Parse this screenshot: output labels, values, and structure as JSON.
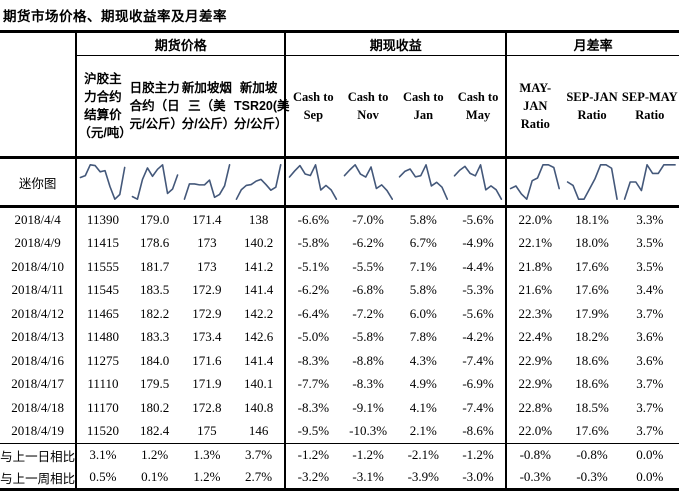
{
  "title": "期货市场价格、期现收益率及月差率",
  "colors": {
    "background": "#ffffff",
    "text": "#000000",
    "border": "#000000",
    "sparkline": "#44587a"
  },
  "table": {
    "corner_label": "",
    "groups": [
      {
        "label": "期货价格",
        "span": 4
      },
      {
        "label": "期现收益",
        "span": 4
      },
      {
        "label": "月差率",
        "span": 3
      }
    ],
    "columns": [
      "沪胶主力合约结算价（元/吨）",
      "日胶主力合约（日元/公斤）",
      "新加坡烟三（美分/公斤）",
      "新加坡TSR20(美分/公斤）",
      "Cash to Sep",
      "Cash to Nov",
      "Cash to Jan",
      "Cash to May",
      "MAY-JAN Ratio",
      "SEP-JAN Ratio",
      "SEP-MAY Ratio"
    ],
    "sparkline_row_label": "迷你图",
    "rows": [
      {
        "date": "2018/4/4",
        "values": [
          "11390",
          "179.0",
          "171.4",
          "138",
          "-6.6%",
          "-7.0%",
          "5.8%",
          "-5.6%",
          "22.0%",
          "18.1%",
          "3.3%"
        ]
      },
      {
        "date": "2018/4/9",
        "values": [
          "11415",
          "178.6",
          "173",
          "140.2",
          "-5.8%",
          "-6.2%",
          "6.7%",
          "-4.9%",
          "22.1%",
          "18.0%",
          "3.5%"
        ]
      },
      {
        "date": "2018/4/10",
        "values": [
          "11555",
          "181.7",
          "173",
          "141.2",
          "-5.1%",
          "-5.5%",
          "7.1%",
          "-4.4%",
          "21.8%",
          "17.6%",
          "3.5%"
        ]
      },
      {
        "date": "2018/4/11",
        "values": [
          "11545",
          "183.5",
          "172.9",
          "141.4",
          "-6.2%",
          "-6.8%",
          "5.8%",
          "-5.3%",
          "21.6%",
          "17.6%",
          "3.4%"
        ]
      },
      {
        "date": "2018/4/12",
        "values": [
          "11465",
          "182.2",
          "172.9",
          "142.2",
          "-6.4%",
          "-7.2%",
          "6.0%",
          "-5.6%",
          "22.3%",
          "17.9%",
          "3.7%"
        ]
      },
      {
        "date": "2018/4/13",
        "values": [
          "11480",
          "183.3",
          "173.4",
          "142.6",
          "-5.0%",
          "-5.8%",
          "7.8%",
          "-4.2%",
          "22.4%",
          "18.2%",
          "3.6%"
        ]
      },
      {
        "date": "2018/4/16",
        "values": [
          "11275",
          "184.0",
          "171.6",
          "141.4",
          "-8.3%",
          "-8.8%",
          "4.3%",
          "-7.4%",
          "22.9%",
          "18.6%",
          "3.6%"
        ]
      },
      {
        "date": "2018/4/17",
        "values": [
          "11110",
          "179.5",
          "171.9",
          "140.1",
          "-7.7%",
          "-8.3%",
          "4.9%",
          "-6.9%",
          "22.9%",
          "18.6%",
          "3.7%"
        ]
      },
      {
        "date": "2018/4/18",
        "values": [
          "11170",
          "180.2",
          "172.8",
          "140.8",
          "-8.3%",
          "-9.1%",
          "4.1%",
          "-7.4%",
          "22.8%",
          "18.5%",
          "3.7%"
        ]
      },
      {
        "date": "2018/4/19",
        "values": [
          "11520",
          "182.4",
          "175",
          "146",
          "-9.5%",
          "-10.3%",
          "2.1%",
          "-8.6%",
          "22.0%",
          "17.6%",
          "3.7%"
        ]
      }
    ],
    "summary_rows": [
      {
        "label": "与上一日相比",
        "values": [
          "3.1%",
          "1.2%",
          "1.3%",
          "3.7%",
          "-1.2%",
          "-1.2%",
          "-2.1%",
          "-1.2%",
          "-0.8%",
          "-0.8%",
          "0.0%"
        ]
      },
      {
        "label": "与上一周相比",
        "values": [
          "0.5%",
          "0.1%",
          "1.2%",
          "2.7%",
          "-3.2%",
          "-3.1%",
          "-3.9%",
          "-3.0%",
          "-0.3%",
          "-0.3%",
          "0.0%"
        ]
      }
    ]
  }
}
